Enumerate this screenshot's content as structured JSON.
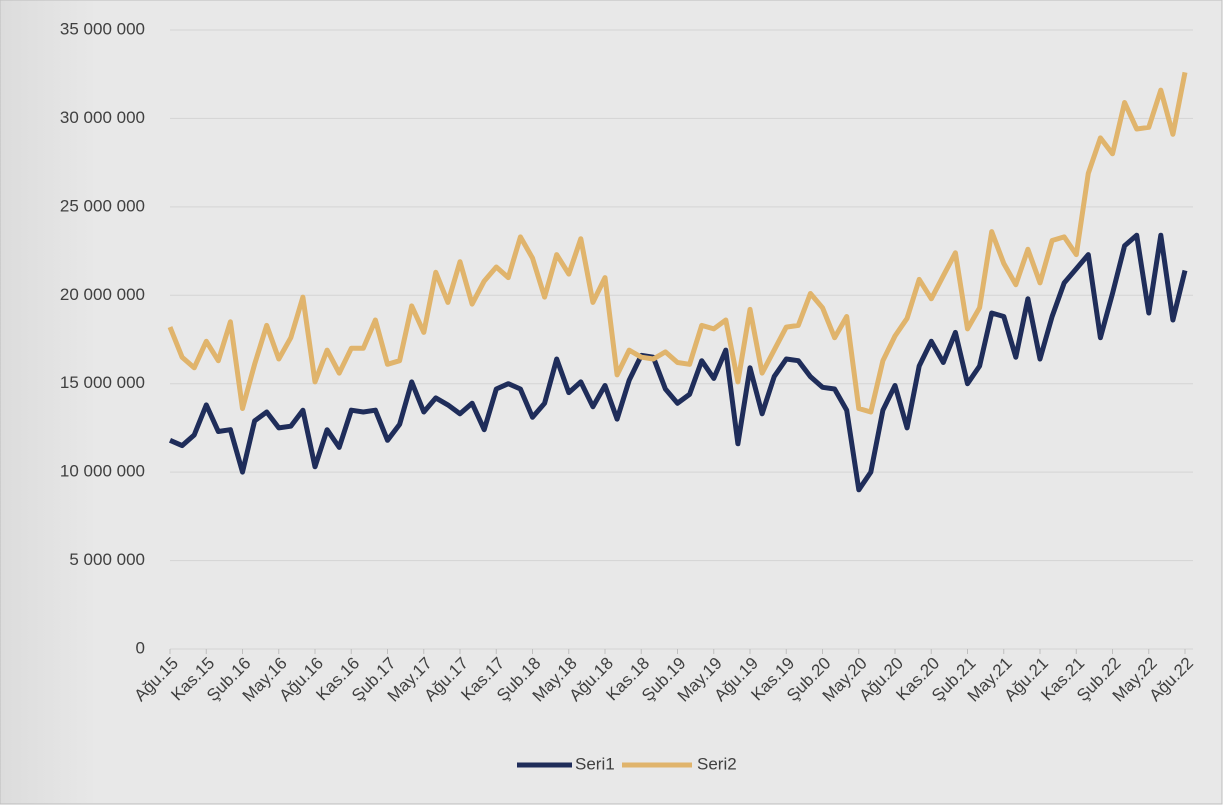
{
  "chart_data": {
    "type": "line",
    "categories": [
      "Ağu.15",
      null,
      null,
      "Kas.15",
      null,
      null,
      "Şub.16",
      null,
      null,
      "May.16",
      null,
      null,
      "Ağu.16",
      null,
      null,
      "Kas.16",
      null,
      null,
      "Şub.17",
      null,
      null,
      "May.17",
      null,
      null,
      "Ağu.17",
      null,
      null,
      "Kas.17",
      null,
      null,
      "Şub.18",
      null,
      null,
      "May.18",
      null,
      null,
      "Ağu.18",
      null,
      null,
      "Kas.18",
      null,
      null,
      "Şub.19",
      null,
      null,
      "May.19",
      null,
      null,
      "Ağu.19",
      null,
      null,
      "Kas.19",
      null,
      null,
      "Şub.20",
      null,
      null,
      "May.20",
      null,
      null,
      "Ağu.20",
      null,
      null,
      "Kas.20",
      null,
      null,
      "Şub.21",
      null,
      null,
      "May.21",
      null,
      null,
      "Ağu.21",
      null,
      null,
      "Kas.21",
      null,
      null,
      "Şub.22",
      null,
      null,
      "May.22",
      null,
      null,
      "Ağu.22"
    ],
    "series": [
      {
        "name": "Seri1",
        "color": "#1f2d5a",
        "values": [
          11800000,
          11500000,
          12100000,
          13800000,
          12300000,
          12400000,
          10000000,
          12900000,
          13400000,
          12500000,
          12600000,
          13500000,
          10300000,
          12400000,
          11400000,
          13500000,
          13400000,
          13500000,
          11800000,
          12700000,
          15100000,
          13400000,
          14200000,
          13800000,
          13300000,
          13900000,
          12400000,
          14700000,
          15000000,
          14700000,
          13100000,
          13900000,
          16400000,
          14500000,
          15100000,
          13700000,
          14900000,
          13000000,
          15200000,
          16600000,
          16500000,
          14700000,
          13900000,
          14400000,
          16300000,
          15300000,
          16900000,
          11600000,
          15900000,
          13300000,
          15400000,
          16400000,
          16300000,
          15400000,
          14800000,
          14700000,
          13500000,
          9000000,
          10000000,
          13500000,
          14900000,
          12500000,
          16000000,
          17400000,
          16200000,
          17900000,
          15000000,
          16000000,
          19000000,
          18800000,
          16500000,
          19800000,
          16400000,
          18800000,
          20700000,
          21500000,
          22300000,
          17600000,
          20100000,
          22800000,
          23400000,
          19000000,
          23400000,
          18600000,
          21400000
        ]
      },
      {
        "name": "Seri2",
        "color": "#e0b46c",
        "values": [
          18200000,
          16500000,
          15900000,
          17400000,
          16300000,
          18500000,
          13600000,
          16100000,
          18300000,
          16400000,
          17600000,
          19900000,
          15100000,
          16900000,
          15600000,
          17000000,
          17000000,
          18600000,
          16100000,
          16300000,
          19400000,
          17900000,
          21300000,
          19600000,
          21900000,
          19500000,
          20800000,
          21600000,
          21000000,
          23300000,
          22100000,
          19900000,
          22300000,
          21200000,
          23200000,
          19600000,
          21000000,
          15500000,
          16900000,
          16500000,
          16400000,
          16800000,
          16200000,
          16100000,
          18300000,
          18100000,
          18600000,
          15100000,
          19200000,
          15600000,
          16900000,
          18200000,
          18300000,
          20100000,
          19300000,
          17600000,
          18800000,
          13600000,
          13400000,
          16300000,
          17700000,
          18700000,
          20900000,
          19800000,
          21100000,
          22400000,
          18100000,
          19300000,
          23600000,
          21800000,
          20600000,
          22600000,
          20700000,
          23100000,
          23300000,
          22300000,
          26900000,
          28900000,
          28000000,
          30900000,
          29400000,
          29500000,
          31600000,
          29100000,
          32600000
        ]
      }
    ],
    "ylim": [
      0,
      35000000
    ],
    "yticks": [
      0,
      {
        "value": 5000000,
        "label": "5 000 000"
      },
      {
        "value": 10000000,
        "label": "10 000 000"
      },
      {
        "value": 15000000,
        "label": "15 000 000"
      },
      {
        "value": 20000000,
        "label": "20 000 000"
      },
      {
        "value": 25000000,
        "label": "25 000 000"
      },
      {
        "value": 30000000,
        "label": "30 000 000"
      },
      {
        "value": 35000000,
        "label": "35 000 000"
      }
    ],
    "grid": true,
    "legend": "bottom"
  }
}
